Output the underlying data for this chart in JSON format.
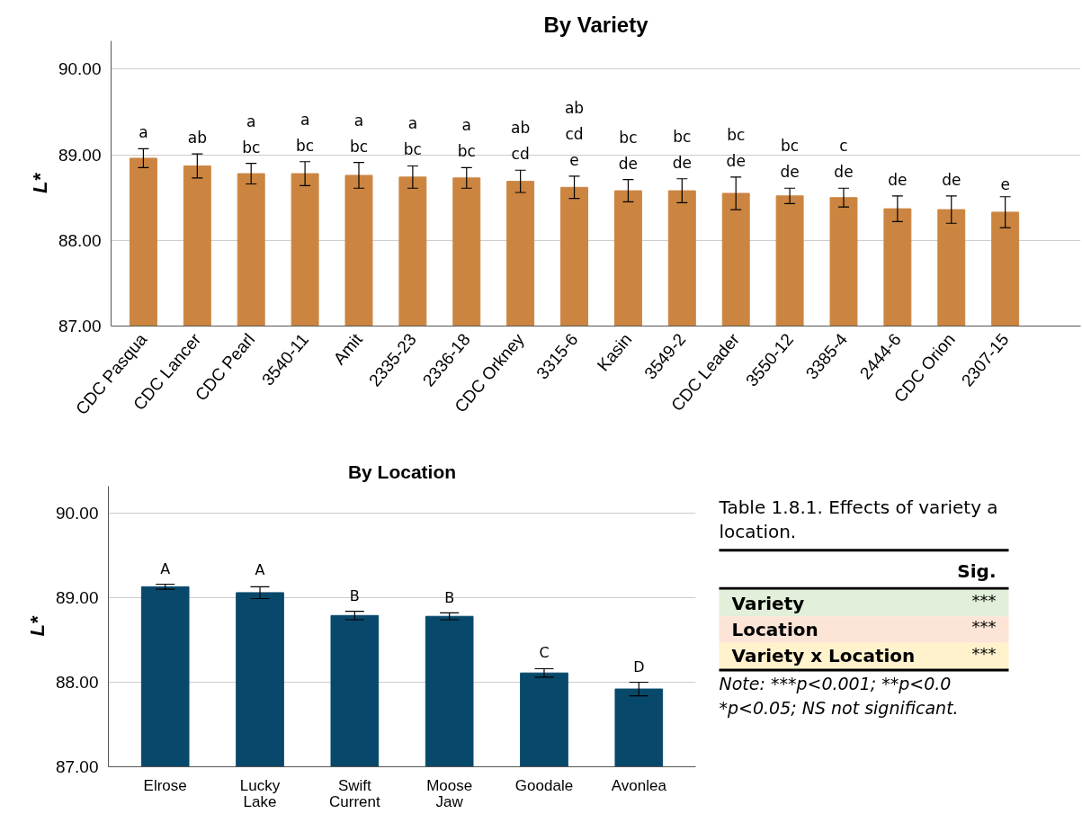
{
  "chart_data": [
    {
      "type": "bar",
      "title": "By Variety",
      "ylabel": "L*",
      "categories": [
        "CDC Pasqua",
        "CDC Lancer",
        "CDC Pearl",
        "3540-11",
        "Amit",
        "2335-23",
        "2336-18",
        "CDC Orkney",
        "3315-6",
        "Kasin",
        "3549-2",
        "CDC Leader",
        "3550-12",
        "3385-4",
        "2444-6",
        "CDC Orion",
        "2307-15"
      ],
      "values": [
        88.96,
        88.87,
        88.78,
        88.78,
        88.76,
        88.74,
        88.73,
        88.69,
        88.62,
        88.58,
        88.58,
        88.55,
        88.52,
        88.5,
        88.37,
        88.36,
        88.33
      ],
      "errors": [
        0.11,
        0.14,
        0.12,
        0.14,
        0.15,
        0.13,
        0.12,
        0.13,
        0.13,
        0.13,
        0.14,
        0.19,
        0.09,
        0.11,
        0.15,
        0.16,
        0.18
      ],
      "color": "#cc8540",
      "ylim": [
        87,
        90.33
      ],
      "yticks": [
        {
          "value": 87,
          "label": "87.00"
        },
        {
          "value": 88,
          "label": "88.00"
        },
        {
          "value": 89,
          "label": "89.00"
        },
        {
          "value": 90,
          "label": "90.00"
        }
      ],
      "grid": "y",
      "annotations": [
        {
          "text": "a",
          "x": "CDC Pasqua",
          "y": 89.07
        },
        {
          "text": "ab",
          "x": "CDC Lancer",
          "y": 89.01
        },
        {
          "text": "a\nbc",
          "x": "CDC Pearl",
          "y": 88.9
        },
        {
          "text": "a\nbc",
          "x": "3540-11",
          "y": 88.92
        },
        {
          "text": "a\nbc",
          "x": "Amit",
          "y": 88.91
        },
        {
          "text": "a\nbc",
          "x": "2335-23",
          "y": 88.87
        },
        {
          "text": "a\nbc",
          "x": "2336-18",
          "y": 88.85
        },
        {
          "text": "ab\ncd",
          "x": "CDC Orkney",
          "y": 88.82
        },
        {
          "text": "ab\ncd\ne",
          "x": "3315-6",
          "y": 88.75
        },
        {
          "text": "bc\nde",
          "x": "Kasin",
          "y": 88.71
        },
        {
          "text": "bc\nde",
          "x": "3549-2",
          "y": 88.72
        },
        {
          "text": "bc\nde",
          "x": "CDC Leader",
          "y": 88.74
        },
        {
          "text": "bc\nde",
          "x": "3550-12",
          "y": 88.61
        },
        {
          "text": "c\nde",
          "x": "3385-4",
          "y": 88.61
        },
        {
          "text": "de",
          "x": "2444-6",
          "y": 88.52
        },
        {
          "text": "de",
          "x": "CDC Orion",
          "y": 88.52
        },
        {
          "text": "e",
          "x": "2307-15",
          "y": 88.51
        }
      ]
    },
    {
      "type": "bar",
      "title": "By Location",
      "ylabel": "L*",
      "categories": [
        "Elrose",
        "Lucky Lake",
        "Swift Current",
        "Moose Jaw",
        "Goodale",
        "Avonlea"
      ],
      "values": [
        89.13,
        89.06,
        88.79,
        88.78,
        88.11,
        87.92
      ],
      "errors": [
        0.03,
        0.07,
        0.05,
        0.04,
        0.05,
        0.08
      ],
      "color": "#08496b",
      "ylim": [
        87,
        90.32
      ],
      "yticks": [
        {
          "value": 87,
          "label": "87.00"
        },
        {
          "value": 88,
          "label": "88.00"
        },
        {
          "value": 89,
          "label": "89.00"
        },
        {
          "value": 90,
          "label": "90.00"
        }
      ],
      "grid": "y",
      "annotations": [
        {
          "text": "A",
          "x": "Elrose",
          "y": 89.16
        },
        {
          "text": "A",
          "x": "Lucky Lake",
          "y": 89.14
        },
        {
          "text": "B",
          "x": "Swift Current",
          "y": 88.84
        },
        {
          "text": "B",
          "x": "Moose Jaw",
          "y": 88.81
        },
        {
          "text": "C",
          "x": "Goodale",
          "y": 88.16
        },
        {
          "text": "D",
          "x": "Avonlea",
          "y": 88.0
        }
      ]
    },
    {
      "type": "other",
      "title": "Table 1.8.1. Effects of variety a\nlocation.",
      "categories": [
        "Sig."
      ],
      "y_categories": [
        "Variety",
        "Location",
        "Variety x Location"
      ],
      "cell_labels": [
        [
          "***"
        ],
        [
          "***"
        ],
        [
          "***"
        ]
      ],
      "colors": [
        "#e2efda",
        "#fce4d6",
        "#fff2cc"
      ],
      "annotations": [
        "Note:     ***p<0.001;      **p<0.0",
        "*p<0.05; NS not significant."
      ]
    }
  ]
}
